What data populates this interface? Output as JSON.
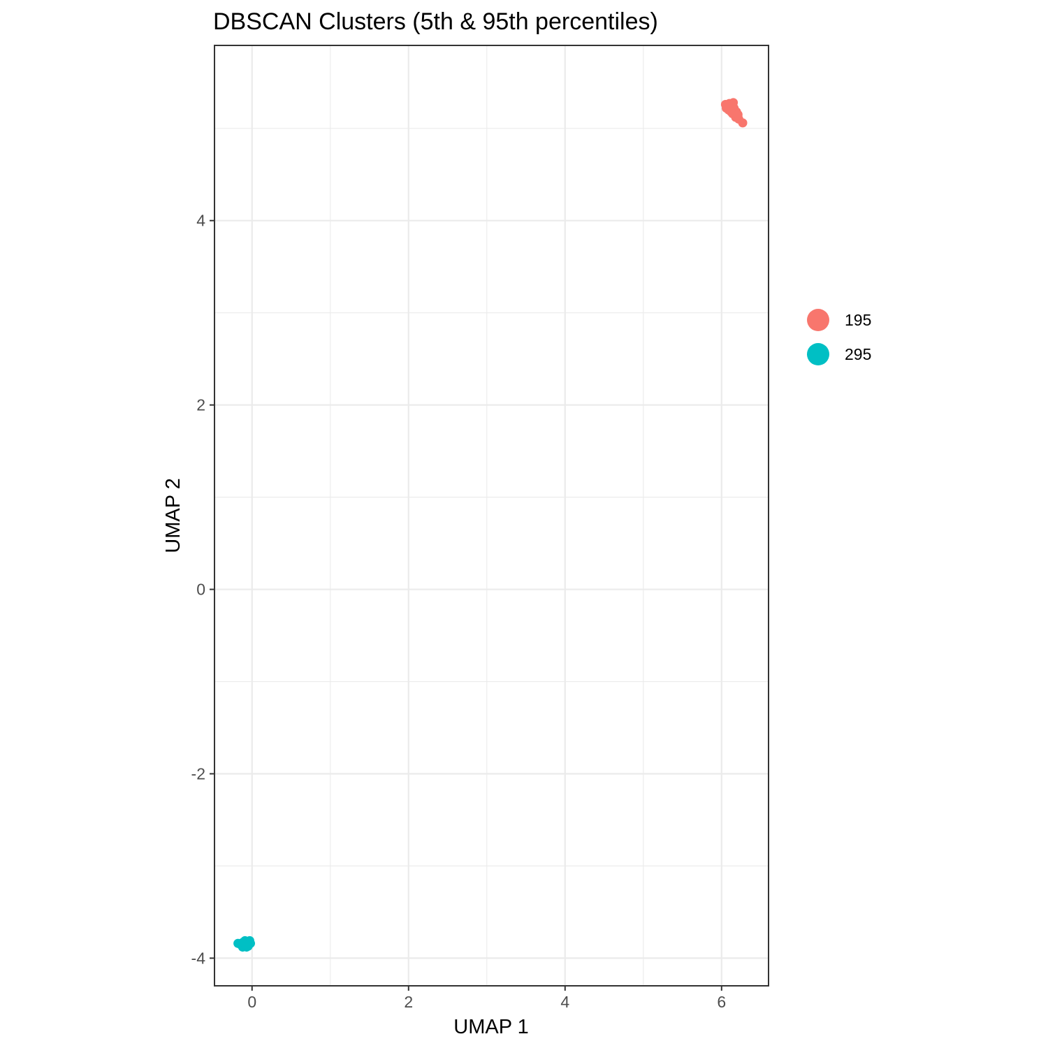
{
  "chart_data": {
    "type": "scatter",
    "title": "DBSCAN Clusters (5th & 95th percentiles)",
    "xlabel": "UMAP 1",
    "ylabel": "UMAP 2",
    "xlim": [
      -0.48,
      6.6
    ],
    "ylim": [
      -4.3,
      5.9
    ],
    "x_ticks": [
      0,
      2,
      4,
      6
    ],
    "y_ticks": [
      -4,
      -2,
      0,
      2,
      4
    ],
    "x_tick_labels": [
      "0",
      "2",
      "4",
      "6"
    ],
    "y_tick_labels": [
      "-4",
      "-2",
      "0",
      "2",
      4
    ],
    "grid": true,
    "legend_position": "right",
    "series": [
      {
        "name": "195",
        "color": "#F8766D",
        "points": [
          [
            6.05,
            5.26
          ],
          [
            6.08,
            5.25
          ],
          [
            6.1,
            5.27
          ],
          [
            6.12,
            5.24
          ],
          [
            6.15,
            5.28
          ],
          [
            6.06,
            5.22
          ],
          [
            6.09,
            5.2
          ],
          [
            6.11,
            5.21
          ],
          [
            6.13,
            5.19
          ],
          [
            6.16,
            5.22
          ],
          [
            6.14,
            5.16
          ],
          [
            6.17,
            5.15
          ],
          [
            6.19,
            5.18
          ],
          [
            6.2,
            5.14
          ],
          [
            6.18,
            5.12
          ],
          [
            6.21,
            5.12
          ],
          [
            6.22,
            5.1
          ],
          [
            6.27,
            5.06
          ],
          [
            6.07,
            5.24
          ],
          [
            6.1,
            5.23
          ],
          [
            6.12,
            5.18
          ],
          [
            6.15,
            5.2
          ],
          [
            6.17,
            5.19
          ],
          [
            6.19,
            5.16
          ],
          [
            6.21,
            5.15
          ]
        ]
      },
      {
        "name": "295",
        "color": "#00BFC4",
        "points": [
          [
            -0.18,
            -3.84
          ],
          [
            -0.15,
            -3.85
          ],
          [
            -0.12,
            -3.83
          ],
          [
            -0.09,
            -3.81
          ],
          [
            -0.03,
            -3.81
          ],
          [
            -0.1,
            -3.86
          ],
          [
            -0.07,
            -3.88
          ],
          [
            -0.05,
            -3.87
          ],
          [
            -0.12,
            -3.88
          ],
          [
            -0.02,
            -3.84
          ],
          [
            -0.08,
            -3.84
          ],
          [
            -0.04,
            -3.85
          ],
          [
            -0.06,
            -3.82
          ],
          [
            -0.1,
            -3.83
          ],
          [
            -0.07,
            -3.86
          ]
        ]
      }
    ]
  }
}
